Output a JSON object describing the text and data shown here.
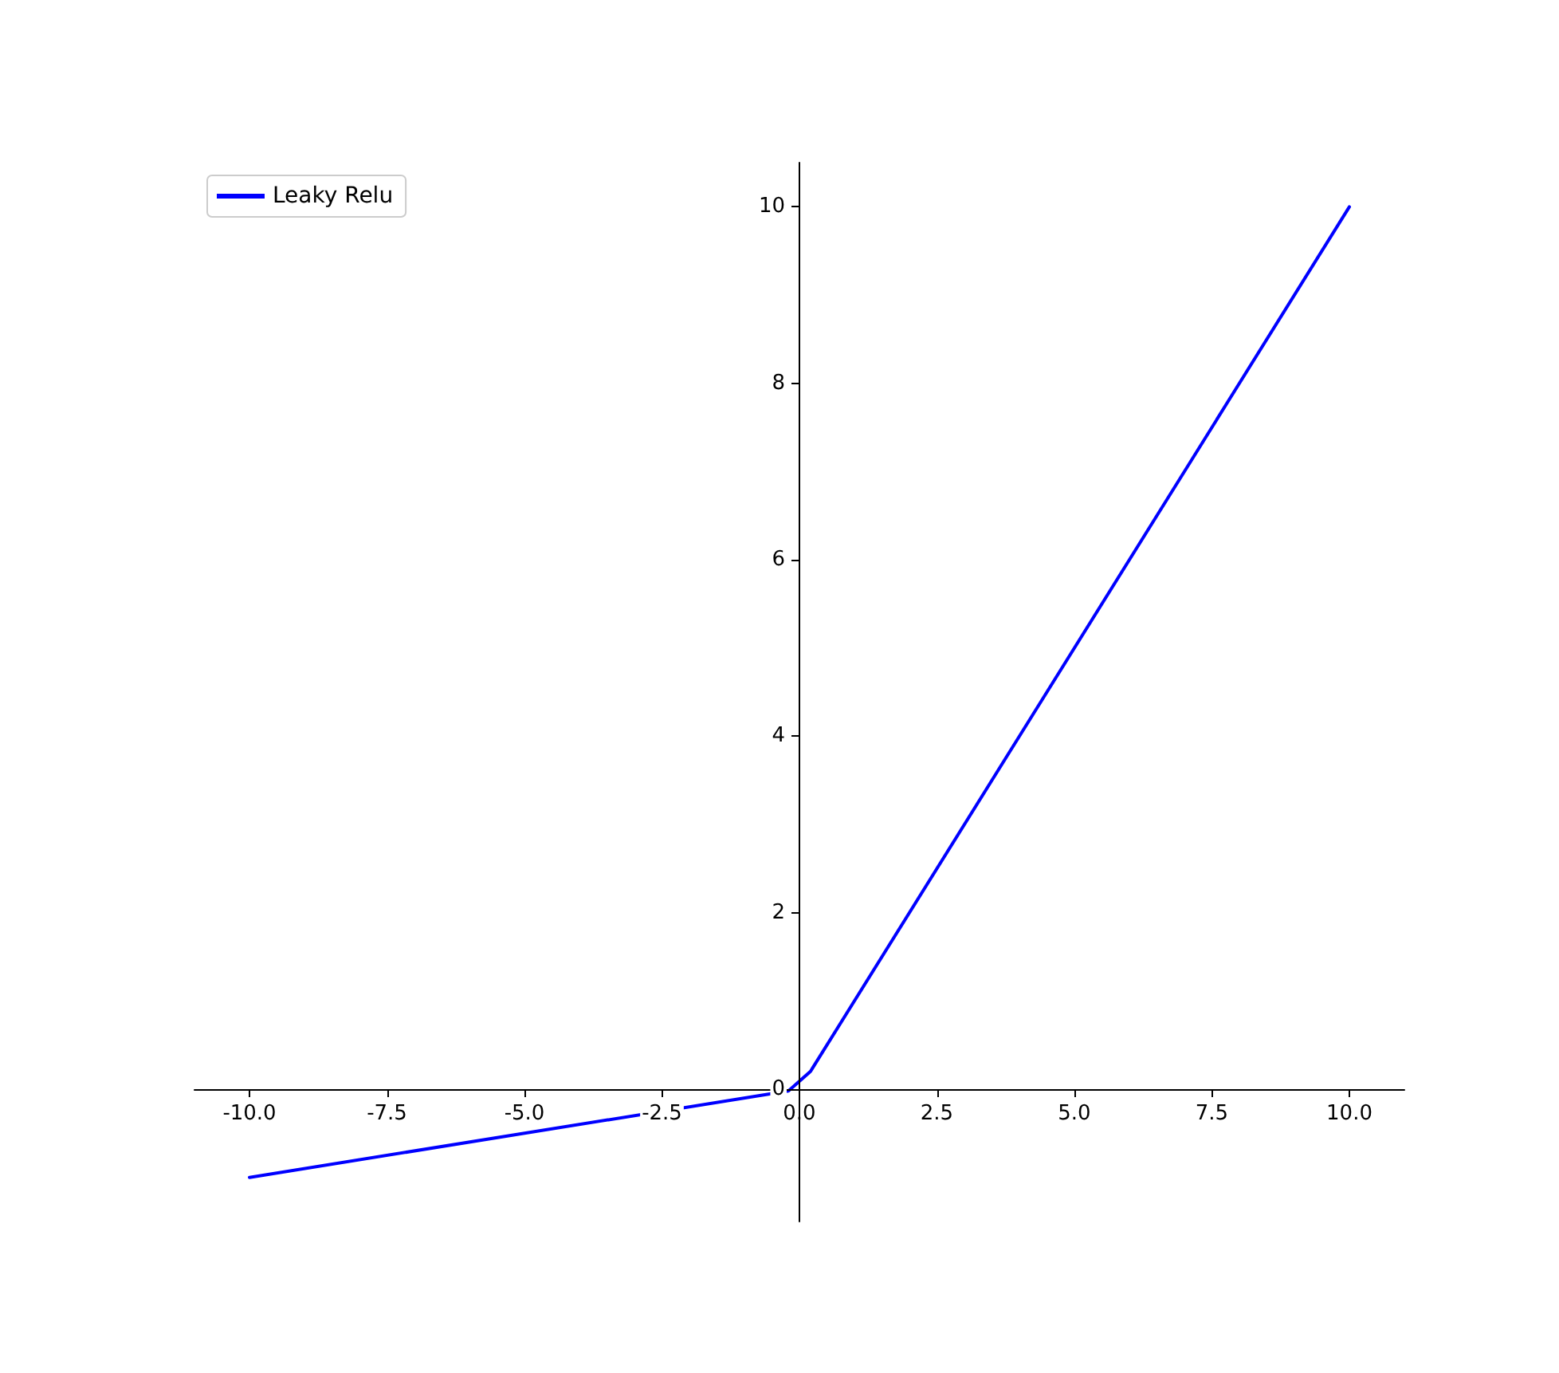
{
  "chart_data": {
    "type": "line",
    "x": [
      -10,
      -0.2,
      0.2,
      10
    ],
    "series": [
      {
        "name": "Leaky Relu",
        "color": "#0000ff",
        "values": [
          -1,
          -0.02,
          0.2,
          10
        ]
      }
    ],
    "xlim": [
      -11,
      11
    ],
    "xticks": [
      {
        "value": -10,
        "label": "-10.0"
      },
      {
        "value": -7.5,
        "label": "-7.5"
      },
      {
        "value": -5,
        "label": "-5.0"
      },
      {
        "value": -2.5,
        "label": "-2.5"
      },
      {
        "value": 0,
        "label": "0.0"
      },
      {
        "value": 2.5,
        "label": "2.5"
      },
      {
        "value": 5,
        "label": "5.0"
      },
      {
        "value": 7.5,
        "label": "7.5"
      },
      {
        "value": 10,
        "label": "10.0"
      }
    ],
    "ylim": [
      -1.5,
      10.5
    ],
    "yticks": [
      0,
      2,
      4,
      6,
      8,
      10
    ],
    "legend": "top left",
    "marker": "none",
    "line_style": "solid"
  }
}
